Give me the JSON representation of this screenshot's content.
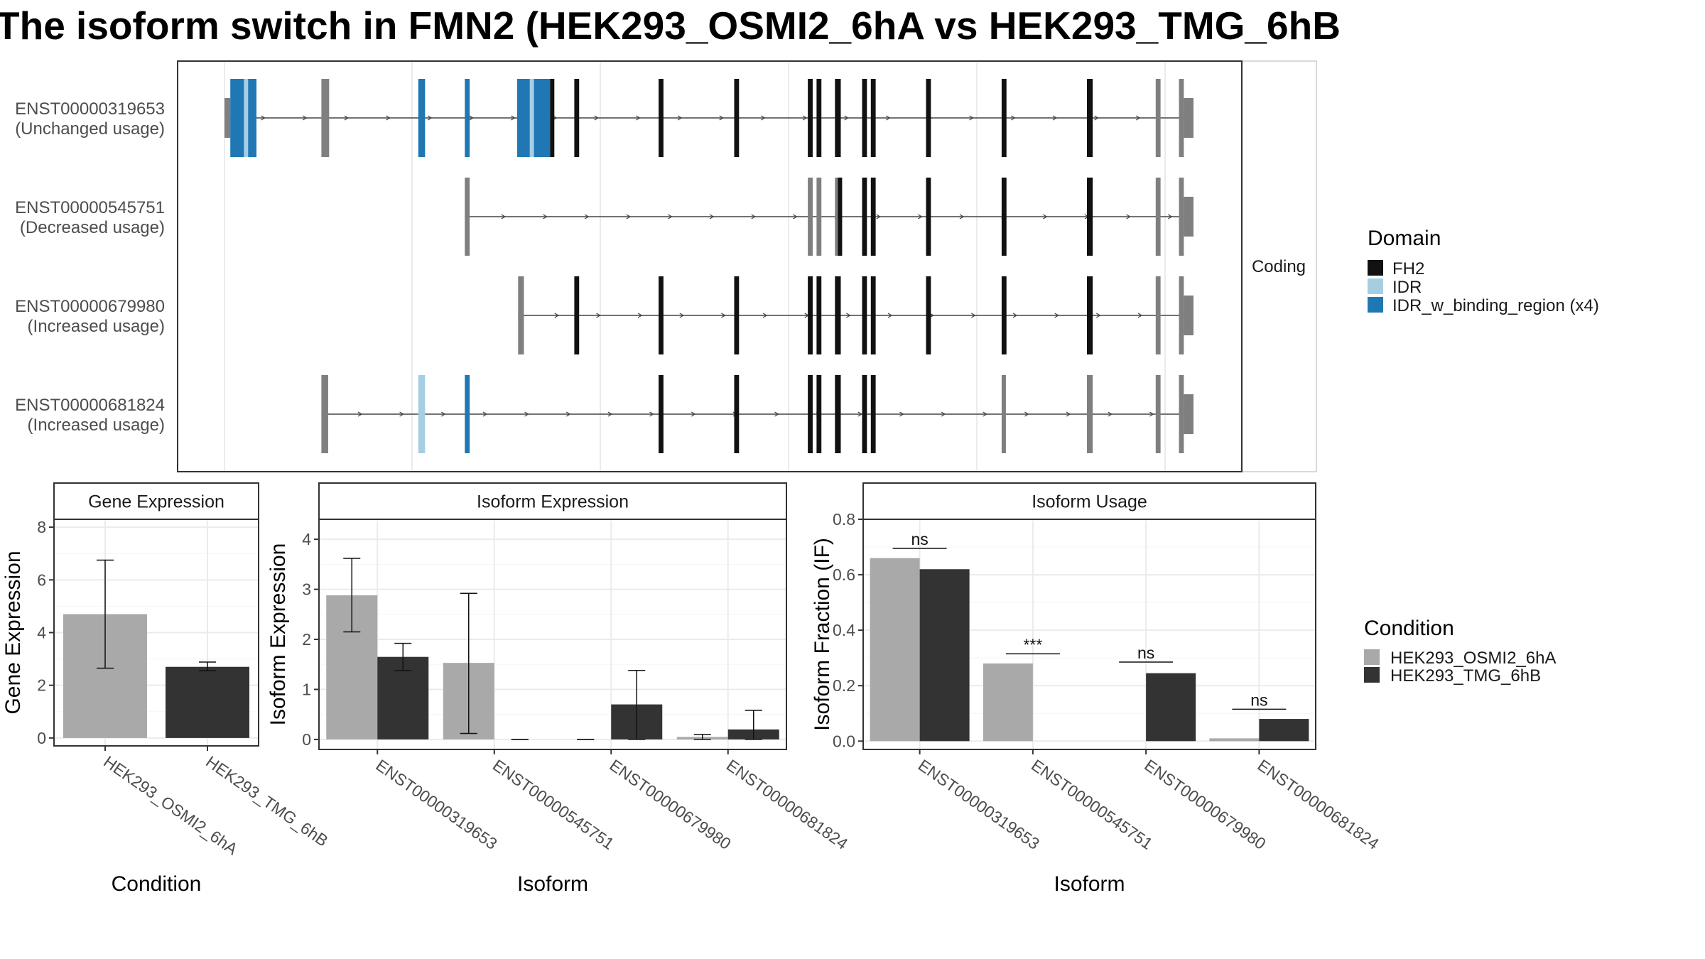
{
  "title": "The isoform switch in FMN2 (HEK293_OSMI2_6hA vs HEK293_TMG_6hB",
  "colors": {
    "FH2": "#111111",
    "IDR": "#a6cee3",
    "IDR_w_binding_region": "#1f78b4",
    "noncoding": "#7f7f7f",
    "condA": "#a9a9a9",
    "condB": "#333333",
    "panel_border": "#333333",
    "strip_fill": "#ffffff",
    "grid": "#ebebeb"
  },
  "structure": {
    "facet_label": "Coding",
    "transcripts": [
      {
        "id": "ENST00000319653",
        "usage": "(Unchanged usage)",
        "start": 0,
        "end": 100,
        "exons": [
          {
            "s": 0.0,
            "e": 0.6,
            "h": "utr"
          },
          {
            "s": 0.6,
            "e": 3.3,
            "h": "cds",
            "d": "IDR_w_binding_region"
          },
          {
            "s": 2.0,
            "e": 2.3,
            "h": "cds",
            "d": "IDR"
          },
          {
            "s": 10.0,
            "e": 10.8,
            "h": "cds"
          },
          {
            "s": 20.0,
            "e": 20.7,
            "h": "cds",
            "d": "IDR_w_binding_region"
          },
          {
            "s": 24.8,
            "e": 25.3,
            "h": "cds",
            "d": "IDR_w_binding_region"
          },
          {
            "s": 30.2,
            "e": 33.6,
            "h": "cds",
            "d": "IDR_w_binding_region"
          },
          {
            "s": 31.5,
            "e": 31.9,
            "h": "cds",
            "d": "IDR"
          },
          {
            "s": 33.6,
            "e": 34.0,
            "h": "cds",
            "d": "FH2"
          },
          {
            "s": 36.1,
            "e": 36.6,
            "h": "cds",
            "d": "FH2"
          },
          {
            "s": 44.8,
            "e": 45.3,
            "h": "cds",
            "d": "FH2"
          },
          {
            "s": 52.6,
            "e": 53.1,
            "h": "cds",
            "d": "FH2"
          },
          {
            "s": 60.2,
            "e": 60.7,
            "h": "cds",
            "d": "FH2"
          },
          {
            "s": 61.1,
            "e": 61.6,
            "h": "cds",
            "d": "FH2"
          },
          {
            "s": 63.0,
            "e": 63.6,
            "h": "cds",
            "d": "FH2"
          },
          {
            "s": 65.8,
            "e": 66.3,
            "h": "cds",
            "d": "FH2"
          },
          {
            "s": 66.7,
            "e": 67.2,
            "h": "cds",
            "d": "FH2"
          },
          {
            "s": 72.4,
            "e": 72.9,
            "h": "cds",
            "d": "FH2"
          },
          {
            "s": 80.2,
            "e": 80.7,
            "h": "cds",
            "d": "FH2"
          },
          {
            "s": 89.0,
            "e": 89.6,
            "h": "cds",
            "d": "FH2"
          },
          {
            "s": 96.1,
            "e": 96.6,
            "h": "cds"
          },
          {
            "s": 98.5,
            "e": 99.0,
            "h": "cds"
          },
          {
            "s": 99.0,
            "e": 100,
            "h": "utr"
          }
        ]
      },
      {
        "id": "ENST00000545751",
        "usage": "(Decreased usage)",
        "start": 24.8,
        "end": 100,
        "exons": [
          {
            "s": 24.8,
            "e": 25.3,
            "h": "cds"
          },
          {
            "s": 60.2,
            "e": 60.7,
            "h": "cds"
          },
          {
            "s": 61.1,
            "e": 61.6,
            "h": "cds"
          },
          {
            "s": 63.0,
            "e": 63.3,
            "h": "cds"
          },
          {
            "s": 63.3,
            "e": 63.6,
            "h": "cds",
            "d": "FH2"
          },
          {
            "s": 65.8,
            "e": 66.3,
            "h": "cds",
            "d": "FH2"
          },
          {
            "s": 66.7,
            "e": 67.2,
            "h": "cds",
            "d": "FH2"
          },
          {
            "s": 72.4,
            "e": 72.9,
            "h": "cds",
            "d": "FH2"
          },
          {
            "s": 80.2,
            "e": 80.7,
            "h": "cds",
            "d": "FH2"
          },
          {
            "s": 89.0,
            "e": 89.6,
            "h": "cds",
            "d": "FH2"
          },
          {
            "s": 96.1,
            "e": 96.6,
            "h": "cds"
          },
          {
            "s": 98.5,
            "e": 99.0,
            "h": "cds"
          },
          {
            "s": 99.0,
            "e": 100,
            "h": "utr"
          }
        ]
      },
      {
        "id": "ENST00000679980",
        "usage": "(Increased usage)",
        "start": 30.3,
        "end": 100,
        "exons": [
          {
            "s": 30.3,
            "e": 30.9,
            "h": "cds"
          },
          {
            "s": 36.1,
            "e": 36.6,
            "h": "cds",
            "d": "FH2"
          },
          {
            "s": 44.8,
            "e": 45.3,
            "h": "cds",
            "d": "FH2"
          },
          {
            "s": 52.6,
            "e": 53.1,
            "h": "cds",
            "d": "FH2"
          },
          {
            "s": 60.2,
            "e": 60.7,
            "h": "cds",
            "d": "FH2"
          },
          {
            "s": 61.1,
            "e": 61.6,
            "h": "cds",
            "d": "FH2"
          },
          {
            "s": 63.0,
            "e": 63.6,
            "h": "cds",
            "d": "FH2"
          },
          {
            "s": 65.8,
            "e": 66.3,
            "h": "cds",
            "d": "FH2"
          },
          {
            "s": 66.7,
            "e": 67.2,
            "h": "cds",
            "d": "FH2"
          },
          {
            "s": 72.4,
            "e": 72.9,
            "h": "cds",
            "d": "FH2"
          },
          {
            "s": 80.2,
            "e": 80.7,
            "h": "cds",
            "d": "FH2"
          },
          {
            "s": 89.0,
            "e": 89.6,
            "h": "cds",
            "d": "FH2"
          },
          {
            "s": 96.1,
            "e": 96.6,
            "h": "cds"
          },
          {
            "s": 98.5,
            "e": 99.0,
            "h": "cds"
          },
          {
            "s": 99.0,
            "e": 100,
            "h": "utr"
          }
        ]
      },
      {
        "id": "ENST00000681824",
        "usage": "(Increased usage)",
        "start": 10.0,
        "end": 100,
        "exons": [
          {
            "s": 10.0,
            "e": 10.7,
            "h": "cds"
          },
          {
            "s": 20.0,
            "e": 20.7,
            "h": "cds",
            "d": "IDR"
          },
          {
            "s": 24.8,
            "e": 25.3,
            "h": "cds",
            "d": "IDR_w_binding_region"
          },
          {
            "s": 44.8,
            "e": 45.3,
            "h": "cds",
            "d": "FH2"
          },
          {
            "s": 52.6,
            "e": 53.1,
            "h": "cds",
            "d": "FH2"
          },
          {
            "s": 60.2,
            "e": 60.7,
            "h": "cds",
            "d": "FH2"
          },
          {
            "s": 61.1,
            "e": 61.6,
            "h": "cds",
            "d": "FH2"
          },
          {
            "s": 63.0,
            "e": 63.6,
            "h": "cds",
            "d": "FH2"
          },
          {
            "s": 65.8,
            "e": 66.3,
            "h": "cds",
            "d": "FH2"
          },
          {
            "s": 66.7,
            "e": 67.2,
            "h": "cds",
            "d": "FH2"
          },
          {
            "s": 80.2,
            "e": 80.6,
            "h": "cds"
          },
          {
            "s": 89.0,
            "e": 89.6,
            "h": "cds"
          },
          {
            "s": 96.1,
            "e": 96.6,
            "h": "cds"
          },
          {
            "s": 98.5,
            "e": 99.0,
            "h": "cds"
          },
          {
            "s": 99.0,
            "e": 100,
            "h": "utr"
          }
        ]
      }
    ]
  },
  "legend_domain": {
    "title": "Domain",
    "items": [
      {
        "label": "FH2",
        "key": "FH2"
      },
      {
        "label": "IDR",
        "key": "IDR"
      },
      {
        "label": "IDR_w_binding_region (x4)",
        "key": "IDR_w_binding_region"
      }
    ]
  },
  "legend_condition": {
    "title": "Condition",
    "items": [
      "HEK293_OSMI2_6hA",
      "HEK293_TMG_6hB"
    ]
  },
  "chart_data": [
    {
      "type": "bar",
      "title": "Gene Expression",
      "xlabel": "Condition",
      "ylabel": "Gene Expression",
      "ylim": [
        -0.3,
        8.3
      ],
      "yticks": [
        0,
        2,
        4,
        6,
        8
      ],
      "categories": [
        "HEK293_OSMI2_6hA",
        "HEK293_TMG_6hB"
      ],
      "values": [
        4.7,
        2.7
      ],
      "errors": [
        [
          2.65,
          6.75
        ],
        [
          2.55,
          2.88
        ]
      ]
    },
    {
      "type": "bar",
      "title": "Isoform Expression",
      "xlabel": "Isoform",
      "ylabel": "Isoform Expression",
      "ylim": [
        -0.2,
        4.4
      ],
      "yticks": [
        0,
        1,
        2,
        3,
        4
      ],
      "categories": [
        "ENST00000319653",
        "ENST00000545751",
        "ENST00000679980",
        "ENST00000681824"
      ],
      "series": [
        {
          "values": [
            2.88,
            1.53,
            0.0,
            0.05
          ],
          "errors": [
            [
              2.15,
              3.62
            ],
            [
              0.12,
              2.92
            ],
            [
              0.0,
              0.0
            ],
            [
              0.0,
              0.1
            ]
          ]
        },
        {
          "values": [
            1.65,
            0.0,
            0.7,
            0.2
          ],
          "errors": [
            [
              1.38,
              1.92
            ],
            [
              0.0,
              0.0
            ],
            [
              0.0,
              1.38
            ],
            [
              0.0,
              0.58
            ]
          ]
        }
      ]
    },
    {
      "type": "bar",
      "title": "Isoform Usage",
      "xlabel": "Isoform",
      "ylabel": "Isoform Fraction (IF)",
      "ylim": [
        -0.03,
        0.8
      ],
      "yticks": [
        0.0,
        0.2,
        0.4,
        0.6,
        0.8
      ],
      "ytick_labels": [
        "0.0",
        "0.2",
        "0.4",
        "0.6",
        "0.8"
      ],
      "categories": [
        "ENST00000319653",
        "ENST00000545751",
        "ENST00000679980",
        "ENST00000681824"
      ],
      "series": [
        {
          "values": [
            0.66,
            0.28,
            0.0,
            0.01
          ]
        },
        {
          "values": [
            0.62,
            0.0,
            0.245,
            0.08
          ]
        }
      ],
      "significance": [
        {
          "label": "ns",
          "y": 0.695
        },
        {
          "label": "***",
          "y": 0.315
        },
        {
          "label": "ns",
          "y": 0.285
        },
        {
          "label": "ns",
          "y": 0.115
        }
      ]
    }
  ]
}
